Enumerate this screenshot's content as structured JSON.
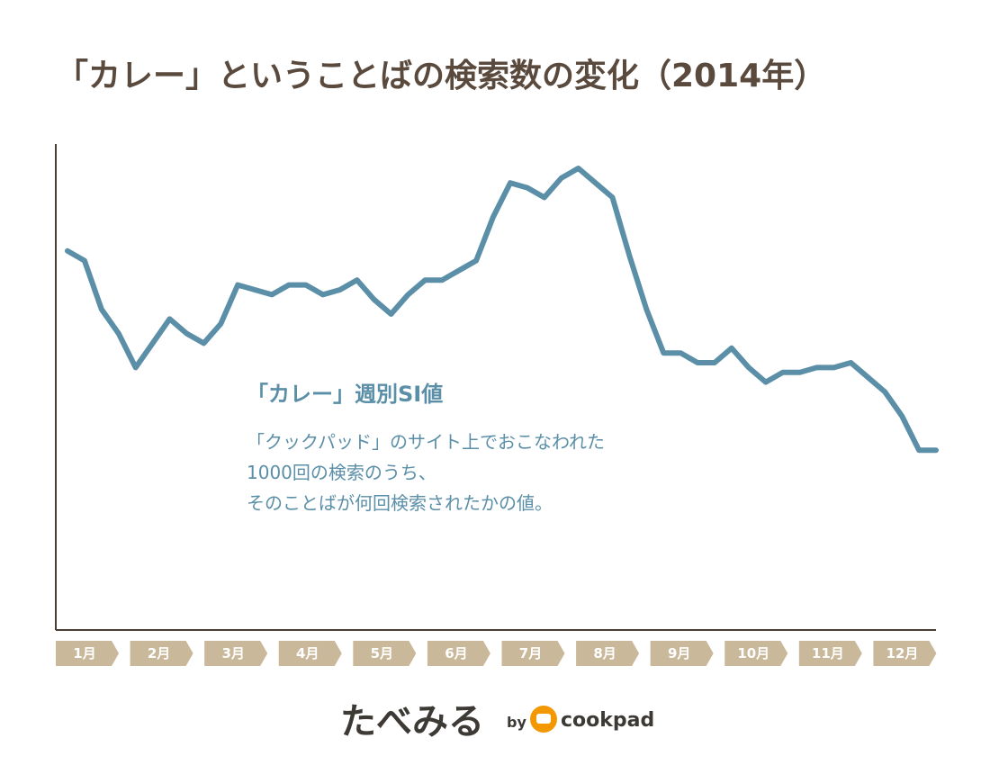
{
  "chart_data": {
    "type": "line",
    "title": "「カレー」ということばの検索数の変化（2014年）",
    "color": "#5b8fa8",
    "ylim": [
      0,
      100
    ],
    "values": [
      78,
      76,
      66,
      61,
      54,
      59,
      64,
      61,
      59,
      63,
      71,
      70,
      69,
      71,
      71,
      69,
      70,
      72,
      68,
      65,
      69,
      72,
      72,
      74,
      76,
      85,
      92,
      91,
      89,
      93,
      95,
      92,
      89,
      77,
      66,
      57,
      57,
      55,
      55,
      58,
      54,
      51,
      53,
      53,
      54,
      54,
      55,
      52,
      49,
      44,
      37,
      37
    ],
    "months": [
      "1月",
      "2月",
      "3月",
      "4月",
      "5月",
      "6月",
      "7月",
      "8月",
      "9月",
      "10月",
      "11月",
      "12月"
    ],
    "annotation": {
      "title": "「カレー」週別SI値",
      "lines": [
        "「クックパッド」のサイト上でおこなわれた",
        "1000回の検索のうち、",
        "そのことばが何回検索されたかの値。"
      ]
    }
  },
  "footer": {
    "brand": "たべみる",
    "by": "by",
    "logo": "cookpad"
  }
}
